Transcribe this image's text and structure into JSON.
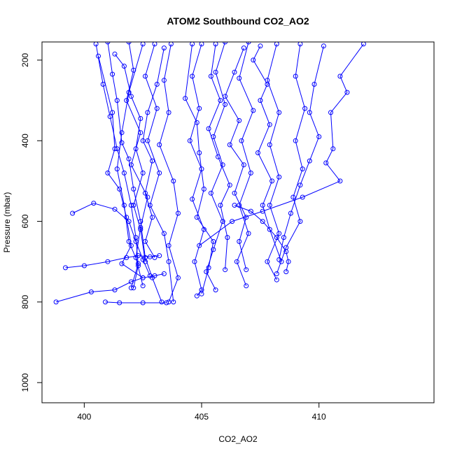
{
  "chart_data": {
    "type": "line",
    "title": "ATOM2 Southbound CO2_AO2",
    "xlabel": "CO2_AO2",
    "ylabel": "Pressure (mbar)",
    "xlim": [
      398.2,
      414.9
    ],
    "ylim": [
      1050,
      155
    ],
    "y_reversed": true,
    "grid": false,
    "legend": "none",
    "marker": "open-circle",
    "color": "#0000ff",
    "x_ticks": [
      {
        "v": 400,
        "label": "400"
      },
      {
        "v": 405,
        "label": "405"
      },
      {
        "v": 410,
        "label": "410"
      }
    ],
    "y_ticks": [
      {
        "v": 200,
        "label": "200"
      },
      {
        "v": 400,
        "label": "400"
      },
      {
        "v": 600,
        "label": "600"
      },
      {
        "v": 800,
        "label": "800"
      },
      {
        "v": 1000,
        "label": "1000"
      }
    ],
    "series": [
      {
        "values": [
          [
            401.0,
            155
          ],
          [
            401.2,
            235
          ],
          [
            401.4,
            300
          ],
          [
            401.6,
            405
          ],
          [
            401.9,
            445
          ],
          [
            402.1,
            520
          ],
          [
            402.4,
            600
          ],
          [
            402.6,
            690
          ],
          [
            402.9,
            740
          ],
          [
            403.3,
            800
          ]
        ]
      },
      {
        "values": [
          [
            400.5,
            160
          ],
          [
            400.8,
            260
          ],
          [
            401.1,
            340
          ],
          [
            401.4,
            420
          ],
          [
            401.7,
            480
          ],
          [
            402.0,
            560
          ],
          [
            402.2,
            640
          ],
          [
            402.3,
            710
          ],
          [
            402.1,
            765
          ]
        ]
      },
      {
        "values": [
          [
            401.9,
            155
          ],
          [
            402.1,
            225
          ],
          [
            401.8,
            300
          ],
          [
            402.4,
            380
          ],
          [
            402.0,
            460
          ],
          [
            402.7,
            540
          ],
          [
            402.4,
            615
          ],
          [
            402.2,
            690
          ],
          [
            402.5,
            760
          ]
        ]
      },
      {
        "values": [
          [
            403.0,
            160
          ],
          [
            402.6,
            240
          ],
          [
            403.1,
            320
          ],
          [
            402.7,
            400
          ],
          [
            403.2,
            480
          ],
          [
            402.8,
            560
          ],
          [
            403.4,
            630
          ],
          [
            403.6,
            700
          ],
          [
            403.8,
            800
          ]
        ]
      },
      {
        "values": [
          [
            403.7,
            160
          ],
          [
            403.4,
            250
          ],
          [
            403.6,
            330
          ],
          [
            403.2,
            410
          ],
          [
            403.8,
            500
          ],
          [
            404.0,
            580
          ],
          [
            403.6,
            660
          ],
          [
            404.0,
            740
          ],
          [
            403.6,
            800
          ]
        ]
      },
      {
        "values": [
          [
            405.0,
            160
          ],
          [
            404.6,
            240
          ],
          [
            404.9,
            320
          ],
          [
            404.5,
            400
          ],
          [
            405.0,
            470
          ],
          [
            404.6,
            545
          ],
          [
            405.1,
            620
          ],
          [
            404.7,
            700
          ],
          [
            405.0,
            770
          ],
          [
            404.8,
            785
          ]
        ]
      },
      {
        "values": [
          [
            406.0,
            155
          ],
          [
            405.6,
            230
          ],
          [
            406.0,
            310
          ],
          [
            405.5,
            390
          ],
          [
            405.9,
            460
          ],
          [
            405.4,
            530
          ],
          [
            405.9,
            600
          ],
          [
            405.5,
            670
          ],
          [
            405.2,
            725
          ],
          [
            405.6,
            770
          ]
        ]
      },
      {
        "values": [
          [
            407.0,
            155
          ],
          [
            406.6,
            245
          ],
          [
            407.2,
            325
          ],
          [
            406.7,
            400
          ],
          [
            407.1,
            480
          ],
          [
            406.6,
            560
          ],
          [
            407.0,
            630
          ],
          [
            406.5,
            700
          ],
          [
            406.9,
            760
          ]
        ]
      },
      {
        "values": [
          [
            408.2,
            160
          ],
          [
            407.8,
            250
          ],
          [
            408.3,
            330
          ],
          [
            407.9,
            410
          ],
          [
            408.3,
            490
          ],
          [
            407.9,
            560
          ],
          [
            408.3,
            630
          ],
          [
            407.8,
            700
          ],
          [
            408.2,
            745
          ]
        ]
      },
      {
        "values": [
          [
            409.2,
            160
          ],
          [
            409.0,
            240
          ],
          [
            409.4,
            320
          ],
          [
            409.0,
            400
          ],
          [
            409.3,
            470
          ],
          [
            408.9,
            540
          ],
          [
            409.2,
            600
          ],
          [
            408.6,
            665
          ],
          [
            408.2,
            730
          ]
        ]
      },
      {
        "values": [
          [
            411.9,
            160
          ],
          [
            410.9,
            240
          ],
          [
            411.2,
            280
          ],
          [
            410.5,
            330
          ],
          [
            410.6,
            420
          ],
          [
            410.3,
            455
          ],
          [
            410.9,
            500
          ],
          [
            409.3,
            540
          ],
          [
            407.6,
            575
          ],
          [
            406.3,
            600
          ],
          [
            404.9,
            660
          ]
        ]
      },
      {
        "values": [
          [
            399.5,
            580
          ],
          [
            400.4,
            555
          ],
          [
            401.3,
            570
          ],
          [
            401.9,
            600
          ],
          [
            402.2,
            650
          ],
          [
            402.5,
            695
          ],
          [
            402.8,
            735
          ]
        ]
      },
      {
        "values": [
          [
            398.8,
            800
          ],
          [
            400.3,
            775
          ],
          [
            401.3,
            770
          ],
          [
            402.0,
            750
          ],
          [
            402.5,
            740
          ],
          [
            403.0,
            735
          ],
          [
            403.4,
            730
          ]
        ]
      },
      {
        "values": [
          [
            399.2,
            715
          ],
          [
            400.0,
            710
          ],
          [
            401.0,
            700
          ],
          [
            401.8,
            690
          ],
          [
            402.3,
            685
          ],
          [
            402.8,
            688
          ],
          [
            403.2,
            685
          ]
        ]
      },
      {
        "values": [
          [
            400.9,
            800
          ],
          [
            401.5,
            802
          ],
          [
            402.5,
            802
          ],
          [
            403.5,
            802
          ]
        ]
      },
      {
        "values": [
          [
            406.4,
            560
          ],
          [
            407.1,
            575
          ],
          [
            407.6,
            600
          ],
          [
            408.2,
            640
          ],
          [
            408.6,
            675
          ],
          [
            408.7,
            700
          ],
          [
            408.6,
            725
          ]
        ]
      },
      {
        "values": [
          [
            402.5,
            160
          ],
          [
            401.9,
            280
          ],
          [
            401.6,
            380
          ],
          [
            401.4,
            470
          ],
          [
            401.7,
            560
          ],
          [
            401.9,
            650
          ],
          [
            402.3,
            705
          ],
          [
            402.0,
            765
          ]
        ]
      },
      {
        "values": [
          [
            401.3,
            185
          ],
          [
            401.7,
            215
          ],
          [
            402.0,
            290
          ],
          [
            402.4,
            345
          ],
          [
            402.2,
            420
          ],
          [
            402.5,
            480
          ],
          [
            402.1,
            560
          ],
          [
            402.4,
            620
          ],
          [
            402.6,
            700
          ]
        ]
      },
      {
        "values": [
          [
            400.6,
            190
          ],
          [
            401.2,
            330
          ],
          [
            401.3,
            420
          ],
          [
            401.0,
            480
          ],
          [
            401.5,
            520
          ],
          [
            401.8,
            590
          ],
          [
            402.0,
            660
          ],
          [
            401.6,
            705
          ],
          [
            402.5,
            740
          ]
        ]
      },
      {
        "values": [
          [
            404.6,
            160
          ],
          [
            404.3,
            295
          ],
          [
            404.8,
            355
          ],
          [
            404.9,
            430
          ],
          [
            405.1,
            520
          ],
          [
            404.8,
            590
          ],
          [
            405.5,
            650
          ],
          [
            405.3,
            715
          ],
          [
            405.0,
            780
          ]
        ]
      },
      {
        "values": [
          [
            405.6,
            160
          ],
          [
            405.4,
            240
          ],
          [
            405.8,
            300
          ],
          [
            405.3,
            370
          ],
          [
            405.7,
            440
          ],
          [
            406.2,
            510
          ],
          [
            405.8,
            560
          ],
          [
            406.1,
            640
          ],
          [
            406.0,
            720
          ]
        ]
      },
      {
        "values": [
          [
            407.5,
            165
          ],
          [
            407.2,
            200
          ],
          [
            407.8,
            260
          ],
          [
            407.5,
            300
          ],
          [
            407.9,
            360
          ],
          [
            407.4,
            430
          ],
          [
            408.0,
            500
          ],
          [
            407.6,
            560
          ],
          [
            407.9,
            620
          ],
          [
            408.4,
            700
          ]
        ]
      },
      {
        "values": [
          [
            410.2,
            165
          ],
          [
            409.8,
            260
          ],
          [
            409.6,
            330
          ],
          [
            410.0,
            390
          ],
          [
            409.6,
            450
          ],
          [
            409.2,
            510
          ],
          [
            408.8,
            580
          ],
          [
            408.5,
            640
          ],
          [
            408.3,
            695
          ]
        ]
      },
      {
        "values": [
          [
            406.8,
            170
          ],
          [
            406.4,
            230
          ],
          [
            406.0,
            290
          ],
          [
            406.6,
            350
          ],
          [
            406.2,
            410
          ],
          [
            406.8,
            460
          ],
          [
            406.4,
            530
          ],
          [
            406.9,
            590
          ],
          [
            406.6,
            650
          ],
          [
            406.9,
            720
          ]
        ]
      },
      {
        "values": [
          [
            403.4,
            170
          ],
          [
            403.1,
            260
          ],
          [
            402.7,
            330
          ],
          [
            402.5,
            400
          ],
          [
            402.9,
            450
          ],
          [
            402.6,
            530
          ],
          [
            402.9,
            590
          ],
          [
            402.6,
            650
          ],
          [
            403.0,
            690
          ]
        ]
      }
    ]
  }
}
